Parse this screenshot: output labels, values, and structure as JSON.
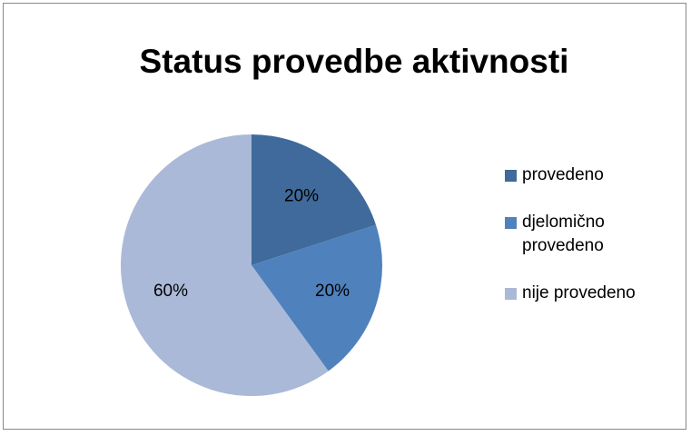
{
  "chart_data": {
    "type": "pie",
    "title": "Status provedbe aktivnosti",
    "categories": [
      "provedeno",
      "djelomično provedeno",
      "nije provedeno"
    ],
    "values": [
      20,
      20,
      60
    ],
    "value_labels": [
      "20%",
      "20%",
      "60%"
    ],
    "colors": [
      "#3f6a9b",
      "#4f81bd",
      "#aab9d7"
    ],
    "legend": "right"
  }
}
